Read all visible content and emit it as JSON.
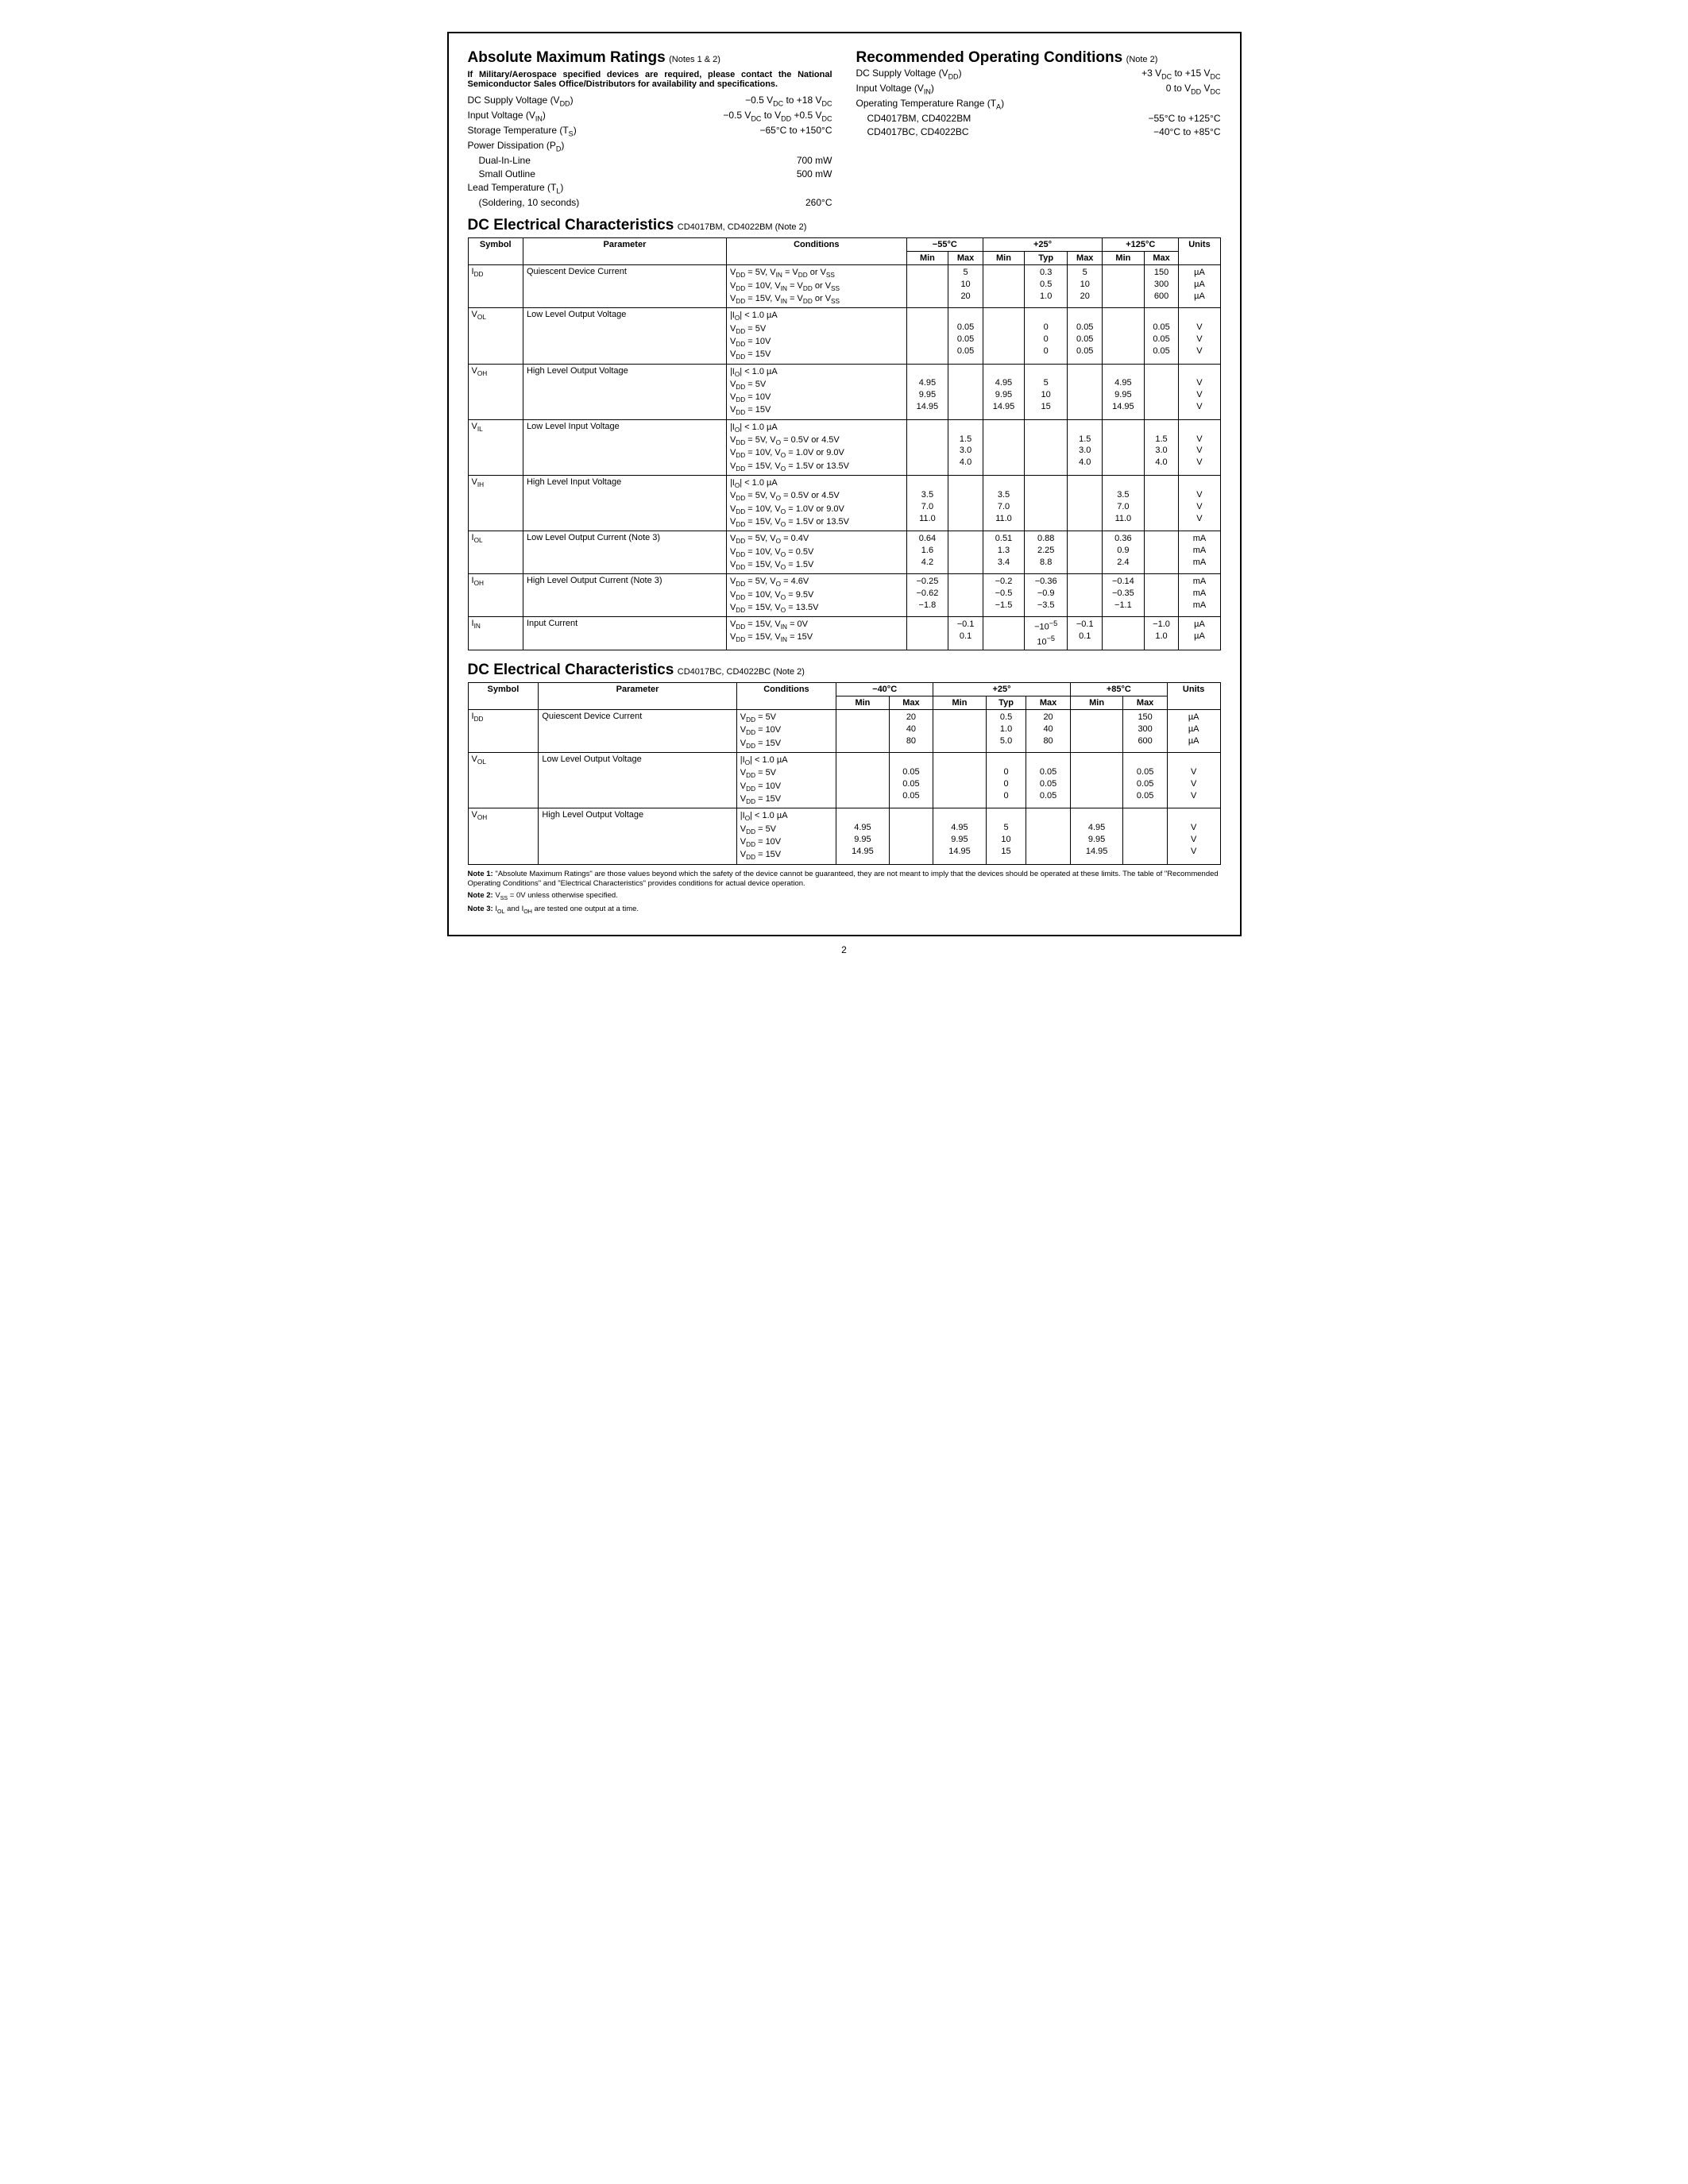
{
  "abs_max": {
    "title": "Absolute Maximum Ratings",
    "title_note": "(Notes 1 & 2)",
    "mil_note": "If Military/Aerospace specified devices are required, please contact the National Semiconductor Sales Office/Distributors for availability and specifications.",
    "rows": [
      {
        "label": "DC Supply Voltage (V<sub>DD</sub>)",
        "value": "−0.5 V<sub>DC</sub> to +18 V<sub>DC</sub>"
      },
      {
        "label": "Input Voltage (V<sub>IN</sub>)",
        "value": "−0.5 V<sub>DC</sub> to V<sub>DD</sub> +0.5 V<sub>DC</sub>"
      },
      {
        "label": "Storage Temperature (T<sub>S</sub>)",
        "value": "−65°C to +150°C"
      },
      {
        "label": "Power Dissipation (P<sub>D</sub>)",
        "value": ""
      },
      {
        "label": "Dual-In-Line",
        "value": "700 mW",
        "indent": true
      },
      {
        "label": "Small Outline",
        "value": "500 mW",
        "indent": true
      },
      {
        "label": "Lead Temperature (T<sub>L</sub>)",
        "value": ""
      },
      {
        "label": "(Soldering, 10 seconds)",
        "value": "260°C",
        "indent": true
      }
    ]
  },
  "rec_op": {
    "title": "Recommended Operating Conditions",
    "title_note": "(Note 2)",
    "rows": [
      {
        "label": "DC Supply Voltage (V<sub>DD</sub>)",
        "value": "+3 V<sub>DC</sub> to +15 V<sub>DC</sub>"
      },
      {
        "label": "Input Voltage (V<sub>IN</sub>)",
        "value": "0 to V<sub>DD</sub> V<sub>DC</sub>"
      },
      {
        "label": "Operating Temperature Range (T<sub>A</sub>)",
        "value": ""
      },
      {
        "label": "CD4017BM, CD4022BM",
        "value": "−55°C to +125°C",
        "indent": true
      },
      {
        "label": "CD4017BC, CD4022BC",
        "value": "−40°C to +85°C",
        "indent": true
      }
    ]
  },
  "table1": {
    "title": "DC Electrical Characteristics",
    "sub": "CD4017BM, CD4022BM (Note 2)",
    "temps": [
      "−55°C",
      "+25°",
      "+125°C"
    ],
    "cols": [
      "Min",
      "Max",
      "Min",
      "Typ",
      "Max",
      "Min",
      "Max"
    ],
    "rows": [
      {
        "sym": "I<sub>DD</sub>",
        "param": "Quiescent Device Current",
        "cond": [
          "V<sub>DD</sub> = 5V, V<sub>IN</sub> = V<sub>DD</sub> or V<sub>SS</sub>",
          "V<sub>DD</sub> = 10V, V<sub>IN</sub> = V<sub>DD</sub> or V<sub>SS</sub>",
          "V<sub>DD</sub> = 15V, V<sub>IN</sub> = V<sub>DD</sub> or V<sub>SS</sub>"
        ],
        "vals": [
          [
            "",
            "5",
            "",
            "0.3",
            "5",
            "",
            "150"
          ],
          [
            "",
            "10",
            "",
            "0.5",
            "10",
            "",
            "300"
          ],
          [
            "",
            "20",
            "",
            "1.0",
            "20",
            "",
            "600"
          ]
        ],
        "units": [
          "µA",
          "µA",
          "µA"
        ]
      },
      {
        "sym": "V<sub>OL</sub>",
        "param": "Low Level Output Voltage",
        "cond": [
          "|I<sub>O</sub>| < 1.0 µA",
          "V<sub>DD</sub> = 5V",
          "V<sub>DD</sub> = 10V",
          "V<sub>DD</sub> = 15V"
        ],
        "vals": [
          [
            "",
            "",
            "",
            "",
            "",
            "",
            ""
          ],
          [
            "",
            "0.05",
            "",
            "0",
            "0.05",
            "",
            "0.05"
          ],
          [
            "",
            "0.05",
            "",
            "0",
            "0.05",
            "",
            "0.05"
          ],
          [
            "",
            "0.05",
            "",
            "0",
            "0.05",
            "",
            "0.05"
          ]
        ],
        "units": [
          "",
          "V",
          "V",
          "V"
        ]
      },
      {
        "sym": "V<sub>OH</sub>",
        "param": "High Level Output Voltage",
        "cond": [
          "|I<sub>O</sub>| < 1.0 µA",
          "V<sub>DD</sub> = 5V",
          "V<sub>DD</sub> = 10V",
          "V<sub>DD</sub> = 15V"
        ],
        "vals": [
          [
            "",
            "",
            "",
            "",
            "",
            "",
            ""
          ],
          [
            "4.95",
            "",
            "4.95",
            "5",
            "",
            "4.95",
            ""
          ],
          [
            "9.95",
            "",
            "9.95",
            "10",
            "",
            "9.95",
            ""
          ],
          [
            "14.95",
            "",
            "14.95",
            "15",
            "",
            "14.95",
            ""
          ]
        ],
        "units": [
          "",
          "V",
          "V",
          "V"
        ]
      },
      {
        "sym": "V<sub>IL</sub>",
        "param": "Low Level Input Voltage",
        "cond": [
          "|I<sub>O</sub>| < 1.0 µA",
          "V<sub>DD</sub> = 5V, V<sub>O</sub> = 0.5V or 4.5V",
          "V<sub>DD</sub> = 10V, V<sub>O</sub> = 1.0V or 9.0V",
          "V<sub>DD</sub> = 15V, V<sub>O</sub> = 1.5V or 13.5V"
        ],
        "vals": [
          [
            "",
            "",
            "",
            "",
            "",
            "",
            ""
          ],
          [
            "",
            "1.5",
            "",
            "",
            "1.5",
            "",
            "1.5"
          ],
          [
            "",
            "3.0",
            "",
            "",
            "3.0",
            "",
            "3.0"
          ],
          [
            "",
            "4.0",
            "",
            "",
            "4.0",
            "",
            "4.0"
          ]
        ],
        "units": [
          "",
          "V",
          "V",
          "V"
        ]
      },
      {
        "sym": "V<sub>IH</sub>",
        "param": "High Level Input Voltage",
        "cond": [
          "|I<sub>O</sub>| < 1.0 µA",
          "V<sub>DD</sub> = 5V, V<sub>O</sub> = 0.5V or 4.5V",
          "V<sub>DD</sub> = 10V, V<sub>O</sub> = 1.0V or 9.0V",
          "V<sub>DD</sub> = 15V, V<sub>O</sub> = 1.5V or 13.5V"
        ],
        "vals": [
          [
            "",
            "",
            "",
            "",
            "",
            "",
            ""
          ],
          [
            "3.5",
            "",
            "3.5",
            "",
            "",
            "3.5",
            ""
          ],
          [
            "7.0",
            "",
            "7.0",
            "",
            "",
            "7.0",
            ""
          ],
          [
            "11.0",
            "",
            "11.0",
            "",
            "",
            "11.0",
            ""
          ]
        ],
        "units": [
          "",
          "V",
          "V",
          "V"
        ]
      },
      {
        "sym": "I<sub>OL</sub>",
        "param": "Low Level Output Current (Note 3)",
        "cond": [
          "V<sub>DD</sub> = 5V, V<sub>O</sub> = 0.4V",
          "V<sub>DD</sub> = 10V, V<sub>O</sub> = 0.5V",
          "V<sub>DD</sub> = 15V, V<sub>O</sub> = 1.5V"
        ],
        "vals": [
          [
            "0.64",
            "",
            "0.51",
            "0.88",
            "",
            "0.36",
            ""
          ],
          [
            "1.6",
            "",
            "1.3",
            "2.25",
            "",
            "0.9",
            ""
          ],
          [
            "4.2",
            "",
            "3.4",
            "8.8",
            "",
            "2.4",
            ""
          ]
        ],
        "units": [
          "mA",
          "mA",
          "mA"
        ]
      },
      {
        "sym": "I<sub>OH</sub>",
        "param": "High Level Output Current (Note 3)",
        "cond": [
          "V<sub>DD</sub> = 5V, V<sub>O</sub> = 4.6V",
          "V<sub>DD</sub> = 10V, V<sub>O</sub> = 9.5V",
          "V<sub>DD</sub> = 15V, V<sub>O</sub> = 13.5V"
        ],
        "vals": [
          [
            "−0.25",
            "",
            "−0.2",
            "−0.36",
            "",
            "−0.14",
            ""
          ],
          [
            "−0.62",
            "",
            "−0.5",
            "−0.9",
            "",
            "−0.35",
            ""
          ],
          [
            "−1.8",
            "",
            "−1.5",
            "−3.5",
            "",
            "−1.1",
            ""
          ]
        ],
        "units": [
          "mA",
          "mA",
          "mA"
        ]
      },
      {
        "sym": "I<sub>IN</sub>",
        "param": "Input Current",
        "cond": [
          "V<sub>DD</sub> = 15V, V<sub>IN</sub> = 0V",
          "V<sub>DD</sub> = 15V, V<sub>IN</sub> = 15V"
        ],
        "vals": [
          [
            "",
            "−0.1",
            "",
            "−10<sup>−5</sup>",
            "−0.1",
            "",
            "−1.0"
          ],
          [
            "",
            "0.1",
            "",
            "10<sup>−5</sup>",
            "0.1",
            "",
            "1.0"
          ]
        ],
        "units": [
          "µA",
          "µA"
        ]
      }
    ]
  },
  "table2": {
    "title": "DC Electrical Characteristics",
    "sub": "CD4017BC, CD4022BC (Note 2)",
    "temps": [
      "−40°C",
      "+25°",
      "+85°C"
    ],
    "cols": [
      "Min",
      "Max",
      "Min",
      "Typ",
      "Max",
      "Min",
      "Max"
    ],
    "rows": [
      {
        "sym": "I<sub>DD</sub>",
        "param": "Quiescent Device Current",
        "cond": [
          "V<sub>DD</sub> = 5V",
          "V<sub>DD</sub> = 10V",
          "V<sub>DD</sub> = 15V"
        ],
        "vals": [
          [
            "",
            "20",
            "",
            "0.5",
            "20",
            "",
            "150"
          ],
          [
            "",
            "40",
            "",
            "1.0",
            "40",
            "",
            "300"
          ],
          [
            "",
            "80",
            "",
            "5.0",
            "80",
            "",
            "600"
          ]
        ],
        "units": [
          "µA",
          "µA",
          "µA"
        ]
      },
      {
        "sym": "V<sub>OL</sub>",
        "param": "Low Level Output Voltage",
        "cond": [
          "|I<sub>O</sub>| < 1.0 µA",
          "V<sub>DD</sub> = 5V",
          "V<sub>DD</sub> = 10V",
          "V<sub>DD</sub> = 15V"
        ],
        "vals": [
          [
            "",
            "",
            "",
            "",
            "",
            "",
            ""
          ],
          [
            "",
            "0.05",
            "",
            "0",
            "0.05",
            "",
            "0.05"
          ],
          [
            "",
            "0.05",
            "",
            "0",
            "0.05",
            "",
            "0.05"
          ],
          [
            "",
            "0.05",
            "",
            "0",
            "0.05",
            "",
            "0.05"
          ]
        ],
        "units": [
          "",
          "V",
          "V",
          "V"
        ]
      },
      {
        "sym": "V<sub>OH</sub>",
        "param": "High Level Output Voltage",
        "cond": [
          "|I<sub>O</sub>| < 1.0 µA",
          "V<sub>DD</sub> = 5V",
          "V<sub>DD</sub> = 10V",
          "V<sub>DD</sub> = 15V"
        ],
        "vals": [
          [
            "",
            "",
            "",
            "",
            "",
            "",
            ""
          ],
          [
            "4.95",
            "",
            "4.95",
            "5",
            "",
            "4.95",
            ""
          ],
          [
            "9.95",
            "",
            "9.95",
            "10",
            "",
            "9.95",
            ""
          ],
          [
            "14.95",
            "",
            "14.95",
            "15",
            "",
            "14.95",
            ""
          ]
        ],
        "units": [
          "",
          "V",
          "V",
          "V"
        ]
      }
    ]
  },
  "notes": {
    "n1": "Note 1: \"Absolute Maximum Ratings\" are those values beyond which the safety of the device cannot be guaranteed, they are not meant to imply that the devices should be operated at these limits. The table of \"Recommended Operating Conditions\" and \"Electrical Characteristics\" provides conditions for actual device operation.",
    "n2a": "Note 2: ",
    "n2b": "V<sub>SS</sub> = 0V unless otherwise specified.",
    "n3a": "Note 3: ",
    "n3b": "I<sub>OL</sub> and I<sub>OH</sub> are tested one output at a time."
  },
  "page_number": "2"
}
